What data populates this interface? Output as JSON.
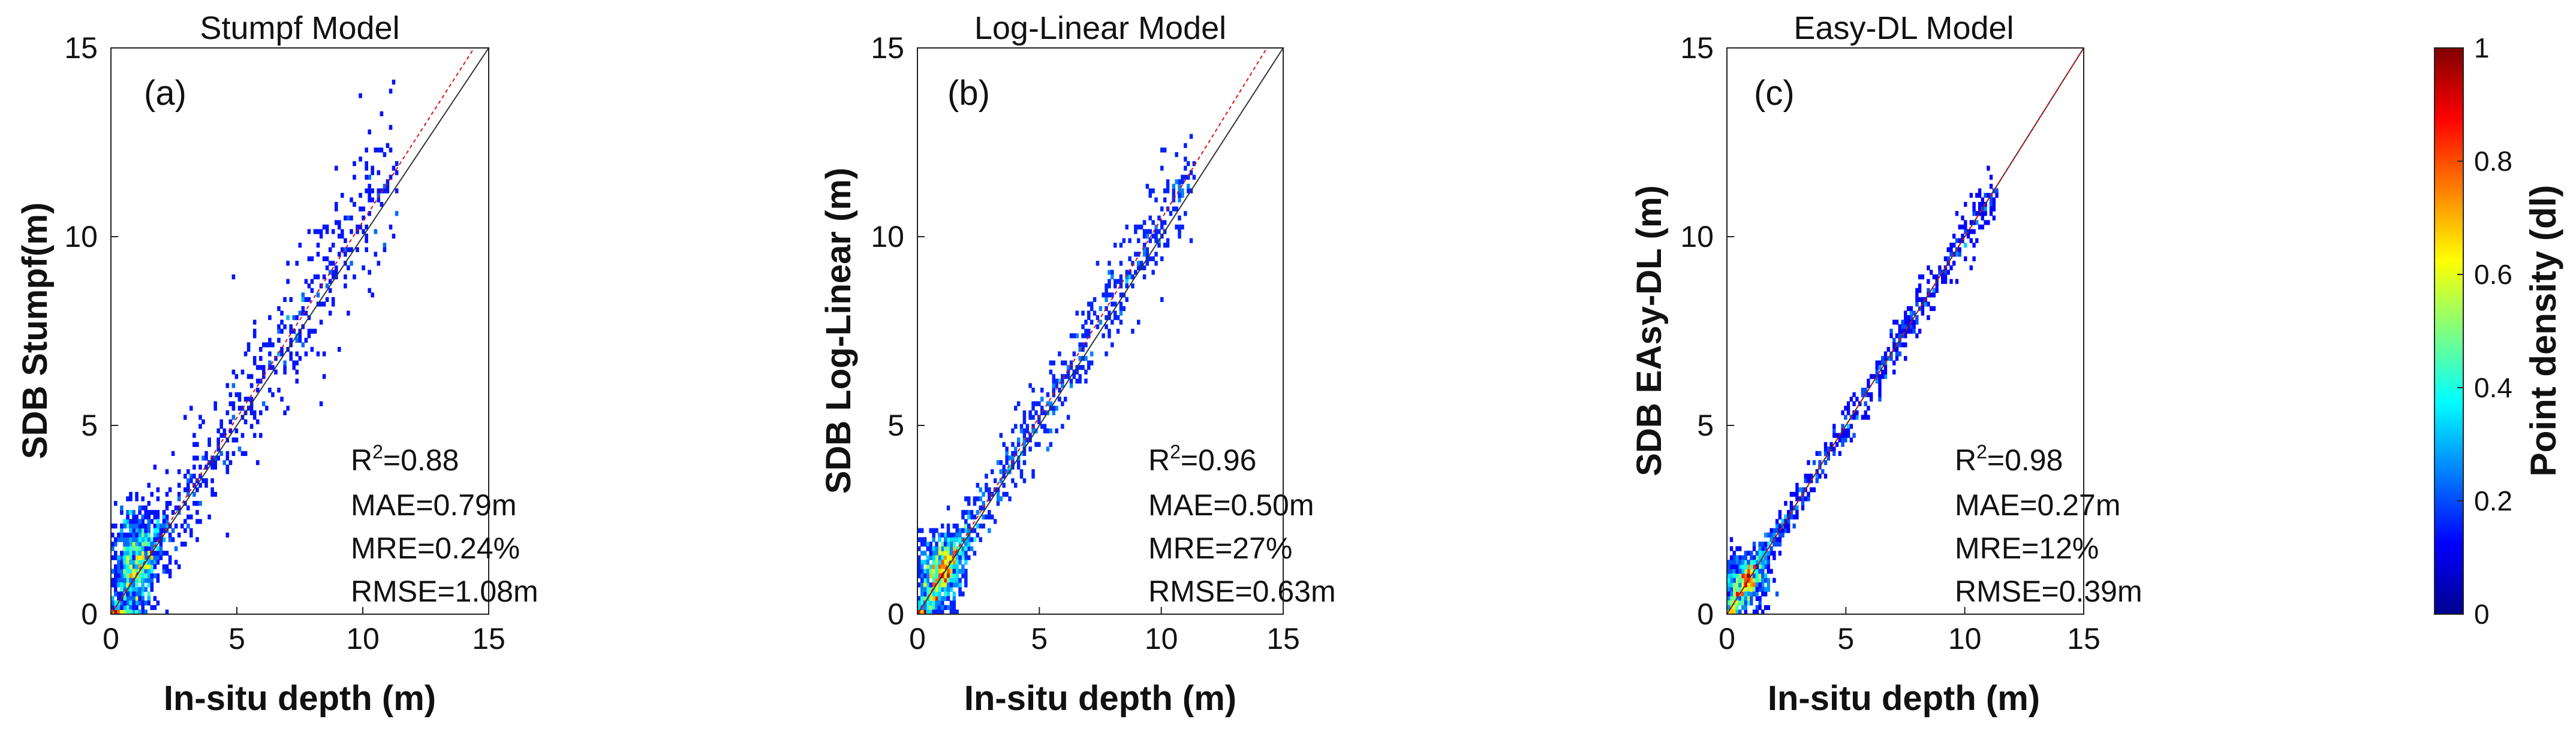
{
  "chart_data": [
    {
      "type": "heatmap",
      "title": "Stumpf Model",
      "panel": "(a)",
      "xlabel": "In-situ depth (m)",
      "ylabel": "SDB Stumpf(m)",
      "xlim": [
        0,
        15
      ],
      "ylim": [
        0,
        15
      ],
      "xticks": [
        "0",
        "5",
        "10",
        "15"
      ],
      "yticks": [
        "0",
        "5",
        "10",
        "15"
      ],
      "stats": {
        "r2_prefix": "R",
        "r2_sup": "2",
        "r2_value": "=0.88",
        "mae": "MAE=0.79m",
        "mre": "MRE=0.24%",
        "rmse": "RMSE=1.08m"
      },
      "fit_slope": 1.04,
      "fit_intercept": 0.0,
      "spread": 0.95,
      "density_peak": [
        1.0,
        1.5
      ]
    },
    {
      "type": "heatmap",
      "title": "Log-Linear Model",
      "panel": "(b)",
      "xlabel": "In-situ depth (m)",
      "ylabel": "SDB Log-Linear (m)",
      "xlim": [
        0,
        15
      ],
      "ylim": [
        0,
        15
      ],
      "xticks": [
        "0",
        "5",
        "10",
        "15"
      ],
      "yticks": [
        "0",
        "5",
        "10",
        "15"
      ],
      "stats": {
        "r2_prefix": "R",
        "r2_sup": "2",
        "r2_value": "=0.96",
        "mae": "MAE=0.50m",
        "mre": "MRE=27%",
        "rmse": "RMSE=0.63m"
      },
      "fit_slope": 1.05,
      "fit_intercept": -0.05,
      "spread": 0.6,
      "density_peak": [
        1.0,
        1.2
      ]
    },
    {
      "type": "heatmap",
      "title": "Easy-DL Model",
      "panel": "(c)",
      "xlabel": "In-situ depth (m)",
      "ylabel": "SDB EAsy-DL (m)",
      "xlim": [
        0,
        15
      ],
      "ylim": [
        0,
        15
      ],
      "xticks": [
        "0",
        "5",
        "10",
        "15"
      ],
      "yticks": [
        "0",
        "5",
        "10",
        "15"
      ],
      "stats": {
        "r2_prefix": "R",
        "r2_sup": "2",
        "r2_value": "=0.98",
        "mae": "MAE=0.27m",
        "mre": "MRE=12%",
        "rmse": "RMSE=0.39m"
      },
      "fit_slope": 1.0,
      "fit_intercept": 0.0,
      "spread": 0.35,
      "density_peak": [
        0.8,
        0.9
      ]
    }
  ],
  "colorbar": {
    "label": "Point density (dl)",
    "ticks": [
      "0",
      "0.2",
      "0.4",
      "0.6",
      "0.8",
      "1"
    ],
    "range": [
      0,
      1
    ]
  }
}
